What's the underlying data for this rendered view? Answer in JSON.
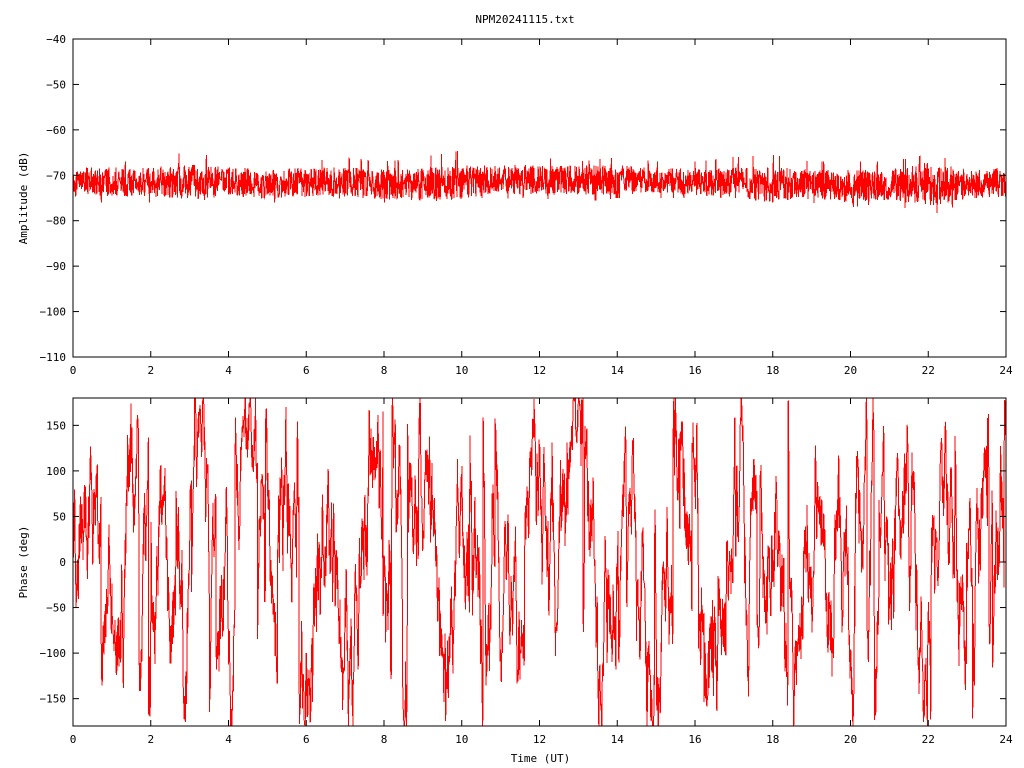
{
  "page": {
    "title": "NPM20241115.txt"
  },
  "colors": {
    "trace": "#ff0000",
    "axis": "#000000",
    "background": "#ffffff"
  },
  "chart_data": [
    {
      "type": "line",
      "title": "NPM20241115.txt",
      "xlabel": "",
      "ylabel": "Amplitude (dB)",
      "xlim": [
        0,
        24
      ],
      "ylim": [
        -110,
        -40
      ],
      "xticks": [
        0,
        2,
        4,
        6,
        8,
        10,
        12,
        14,
        16,
        18,
        20,
        22,
        24
      ],
      "yticks": [
        -40,
        -50,
        -60,
        -70,
        -80,
        -90,
        -100,
        -110
      ],
      "xtick_labels": [
        "0",
        "2",
        "4",
        "6",
        "8",
        "10",
        "12",
        "14",
        "16",
        "18",
        "20",
        "22",
        "24"
      ],
      "ytick_labels": [
        "−40",
        "−50",
        "−60",
        "−70",
        "−80",
        "−90",
        "−100",
        "−110"
      ],
      "grid": false,
      "series": [
        {
          "color": "#ff0000",
          "x": [
            0,
            1,
            2,
            3,
            4,
            5,
            6,
            7,
            8,
            9,
            10,
            11,
            12,
            13,
            14,
            15,
            16,
            17,
            18,
            19,
            20,
            21,
            22,
            23,
            24
          ],
          "y": [
            -71.5,
            -71.5,
            -71.5,
            -71.5,
            -71.5,
            -72,
            -71.5,
            -71.5,
            -72,
            -72,
            -71.5,
            -71,
            -71,
            -71,
            -71,
            -71,
            -71.5,
            -71.5,
            -72,
            -72,
            -72.5,
            -72,
            -72,
            -72,
            -71.5
          ],
          "band_min": [
            -76,
            -76,
            -76,
            -75,
            -76,
            -76,
            -76,
            -75,
            -76,
            -76,
            -75,
            -75,
            -75,
            -76,
            -75,
            -75,
            -75,
            -75,
            -76,
            -76,
            -77,
            -76,
            -79,
            -76,
            -76
          ],
          "band_max": [
            -67,
            -67,
            -67,
            -64.5,
            -67,
            -67,
            -67,
            -66,
            -67,
            -66,
            -64.5,
            -66,
            -66,
            -67,
            -66,
            -67,
            -67,
            -66,
            -65.5,
            -67,
            -67,
            -67,
            -65.5,
            -67,
            -67
          ]
        }
      ]
    },
    {
      "type": "line",
      "title": "",
      "xlabel": "Time (UT)",
      "ylabel": "Phase (deg)",
      "xlim": [
        0,
        24
      ],
      "ylim": [
        -180,
        180
      ],
      "xticks": [
        0,
        2,
        4,
        6,
        8,
        10,
        12,
        14,
        16,
        18,
        20,
        22,
        24
      ],
      "yticks": [
        150,
        100,
        50,
        0,
        -50,
        -100,
        -150
      ],
      "xtick_labels": [
        "0",
        "2",
        "4",
        "6",
        "8",
        "10",
        "12",
        "14",
        "16",
        "18",
        "20",
        "22",
        "24"
      ],
      "ytick_labels": [
        "150",
        "100",
        "50",
        "0",
        "−50",
        "−100",
        "−150"
      ],
      "grid": false,
      "series": [
        {
          "color": "#ff0000",
          "x": [
            0,
            0.5,
            1,
            1.5,
            2,
            2.5,
            3,
            3.5,
            4,
            4.5,
            5,
            5.5,
            6,
            6.5,
            7,
            7.5,
            8,
            8.5,
            9,
            9.5,
            10,
            10.5,
            11,
            11.5,
            12,
            12.5,
            13,
            13.5,
            14,
            14.5,
            15,
            15.5,
            16,
            16.5,
            17,
            17.5,
            18,
            18.5,
            19,
            19.5,
            20,
            20.5,
            21,
            21.5,
            22,
            22.5,
            23,
            23.5,
            24
          ],
          "y": [
            0,
            70,
            -120,
            100,
            60,
            -140,
            150,
            20,
            -60,
            110,
            -30,
            80,
            -90,
            40,
            -150,
            130,
            10,
            -100,
            160,
            -50,
            90,
            -170,
            30,
            -80,
            120,
            -20,
            170,
            -130,
            60,
            0,
            -160,
            100,
            50,
            -110,
            170,
            -30,
            80,
            -150,
            140,
            20,
            -70,
            120,
            -40,
            100,
            -160,
            60,
            -120,
            150,
            30
          ],
          "band_min": [
            -75,
            -180,
            -180,
            -180,
            -180,
            -180,
            -180,
            -180,
            -180,
            -180,
            -180,
            -180,
            -180,
            -160,
            -180,
            -180,
            -180,
            -180,
            -180,
            -180,
            -180,
            -180,
            -180,
            -180,
            -180,
            -180,
            -180,
            -180,
            -180,
            -180,
            -180,
            -180,
            -180,
            -180,
            -180,
            -180,
            -180,
            -180,
            -180,
            -180,
            -180,
            -180,
            -180,
            -180,
            -180,
            -180,
            -180,
            -180,
            -180
          ],
          "band_max": [
            70,
            180,
            180,
            180,
            180,
            180,
            180,
            180,
            180,
            180,
            180,
            180,
            160,
            90,
            180,
            180,
            180,
            180,
            180,
            180,
            180,
            180,
            180,
            180,
            180,
            180,
            180,
            180,
            180,
            180,
            180,
            180,
            180,
            180,
            180,
            180,
            180,
            180,
            180,
            180,
            180,
            180,
            180,
            180,
            180,
            180,
            180,
            180,
            180
          ]
        }
      ]
    }
  ]
}
